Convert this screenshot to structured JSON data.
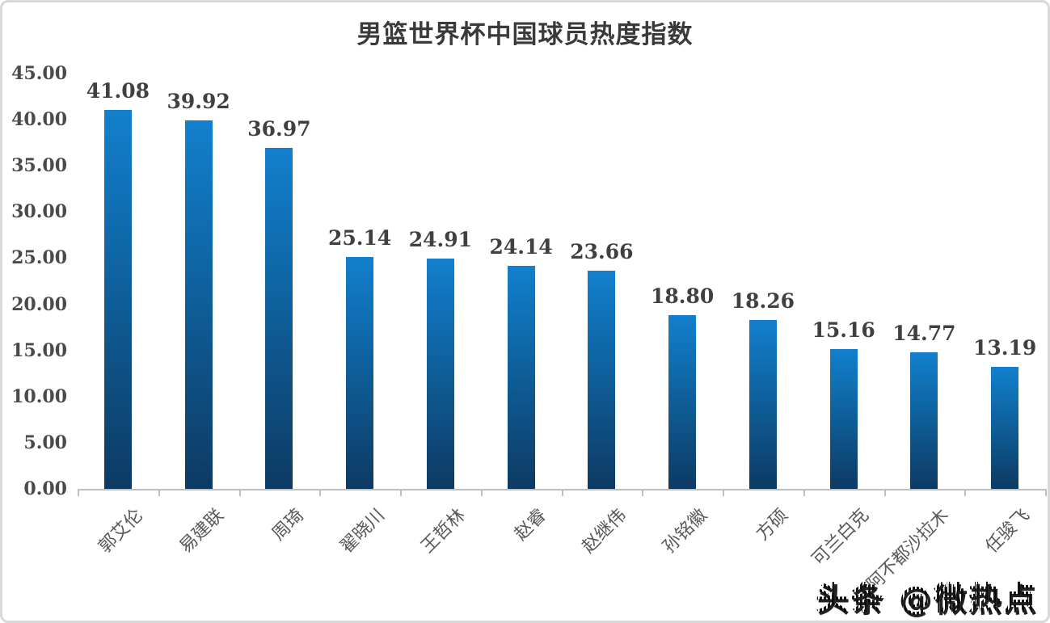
{
  "title": "男篮世界杯中国球员热度指数",
  "watermark": "头条 @微热点",
  "colors": {
    "bar_gradient_top": "#1280ce",
    "bar_gradient_bottom": "#0d3a63",
    "axis": "#bfbfbf",
    "value_label": "#404040",
    "tick_label": "#4a4a4a",
    "category_label": "#595959",
    "title": "#3a3a3a"
  },
  "chart_data": {
    "type": "bar",
    "title": "男篮世界杯中国球员热度指数",
    "categories": [
      "郭艾伦",
      "易建联",
      "周琦",
      "翟晓川",
      "王哲林",
      "赵睿",
      "赵继伟",
      "孙铭徽",
      "方硕",
      "可兰白克",
      "阿不都沙拉木",
      "任骏飞"
    ],
    "values": [
      41.08,
      39.92,
      36.97,
      25.14,
      24.91,
      24.14,
      23.66,
      18.8,
      18.26,
      15.16,
      14.77,
      13.19
    ],
    "value_labels": [
      "41.08",
      "39.92",
      "36.97",
      "25.14",
      "24.91",
      "24.14",
      "23.66",
      "18.80",
      "18.26",
      "15.16",
      "14.77",
      "13.19"
    ],
    "xlabel": "",
    "ylabel": "",
    "ylim": [
      0,
      45
    ],
    "y_ticks": [
      "45.00",
      "40.00",
      "35.00",
      "30.00",
      "25.00",
      "20.00",
      "15.00",
      "10.00",
      "5.00",
      "0.00"
    ],
    "grid": false,
    "legend": null,
    "bar_label_position": "above"
  }
}
